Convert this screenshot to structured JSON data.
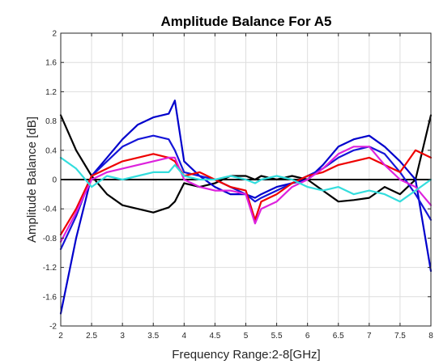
{
  "chart_data": {
    "type": "line",
    "title": "Amplitude Balance For A5",
    "xlabel": "Frequency Range:2-8[GHz]",
    "ylabel": "Amplitude Balance [dB]",
    "xlim": [
      2,
      8
    ],
    "ylim": [
      -2,
      2
    ],
    "grid": true,
    "x_ticks": [
      "2",
      "2.5",
      "3",
      "3.5",
      "4",
      "4.5",
      "5",
      "5.5",
      "6",
      "6.5",
      "7",
      "7.5",
      "8"
    ],
    "y_ticks": [
      "-2",
      "-1.6",
      "-1.2",
      "-0.8",
      "-0.4",
      "0",
      "0.4",
      "0.8",
      "1.2",
      "1.6",
      "2"
    ],
    "x": [
      2.0,
      2.25,
      2.5,
      2.75,
      3.0,
      3.25,
      3.5,
      3.75,
      3.85,
      4.0,
      4.25,
      4.5,
      4.75,
      5.0,
      5.15,
      5.25,
      5.5,
      5.75,
      6.0,
      6.25,
      6.5,
      6.75,
      7.0,
      7.25,
      7.5,
      7.75,
      8.0
    ],
    "series": [
      {
        "color": "#000000",
        "values": [
          0.88,
          0.4,
          0.05,
          -0.2,
          -0.35,
          -0.4,
          -0.45,
          -0.38,
          -0.3,
          -0.05,
          -0.1,
          -0.05,
          0.05,
          0.05,
          0.0,
          0.05,
          0.0,
          0.05,
          0.0,
          -0.15,
          -0.3,
          -0.28,
          -0.25,
          -0.1,
          -0.2,
          0.0,
          0.88
        ]
      },
      {
        "color": "#0000cc",
        "values": [
          -1.83,
          -0.8,
          0.05,
          0.3,
          0.55,
          0.75,
          0.85,
          0.9,
          1.08,
          0.25,
          0.05,
          -0.1,
          -0.2,
          -0.2,
          -0.25,
          -0.2,
          -0.1,
          -0.05,
          0.0,
          0.2,
          0.45,
          0.55,
          0.6,
          0.45,
          0.25,
          0.0,
          -1.25
        ]
      },
      {
        "color": "#1515d8",
        "values": [
          -0.95,
          -0.5,
          0.05,
          0.25,
          0.45,
          0.55,
          0.6,
          0.55,
          0.4,
          0.1,
          0.05,
          0.0,
          -0.1,
          -0.2,
          -0.3,
          -0.25,
          -0.15,
          -0.05,
          0.05,
          0.15,
          0.3,
          0.4,
          0.45,
          0.35,
          0.1,
          -0.2,
          -0.55
        ]
      },
      {
        "color": "#ee0000",
        "values": [
          -0.75,
          -0.4,
          0.05,
          0.15,
          0.25,
          0.3,
          0.35,
          0.3,
          0.25,
          0.05,
          0.1,
          0.0,
          -0.1,
          -0.15,
          -0.55,
          -0.3,
          -0.2,
          -0.05,
          0.05,
          0.1,
          0.2,
          0.25,
          0.3,
          0.2,
          0.1,
          0.4,
          0.3
        ]
      },
      {
        "color": "#dd22dd",
        "values": [
          -0.85,
          -0.45,
          0.0,
          0.1,
          0.15,
          0.2,
          0.25,
          0.3,
          0.3,
          0.0,
          -0.1,
          -0.15,
          -0.15,
          -0.2,
          -0.6,
          -0.4,
          -0.3,
          -0.1,
          0.0,
          0.15,
          0.35,
          0.45,
          0.45,
          0.2,
          0.0,
          -0.1,
          -0.35
        ]
      },
      {
        "color": "#33dddd",
        "values": [
          0.3,
          0.15,
          -0.1,
          0.05,
          0.0,
          0.05,
          0.1,
          0.1,
          0.2,
          0.05,
          0.0,
          0.0,
          0.05,
          0.0,
          -0.05,
          0.0,
          0.05,
          0.0,
          -0.1,
          -0.15,
          -0.1,
          -0.2,
          -0.15,
          -0.2,
          -0.3,
          -0.15,
          0.0
        ]
      }
    ]
  }
}
